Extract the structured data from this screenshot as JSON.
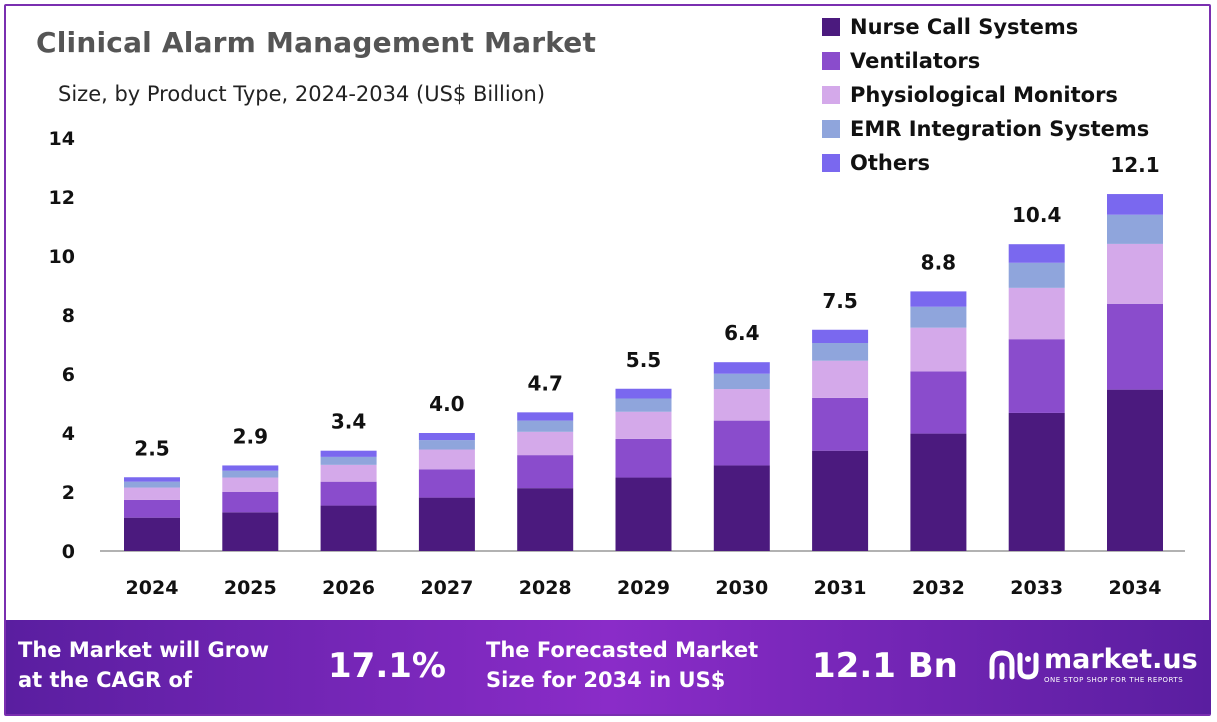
{
  "title": "Clinical Alarm Management Market",
  "subtitle": "Size, by Product Type, 2024-2034 (US$ Billion)",
  "colors": {
    "border": "#7a2fb0",
    "axis": "#999999",
    "banner_start": "#5a1ea0",
    "banner_mid": "#8a2cc8",
    "text_dark": "#111111"
  },
  "chart_data": {
    "type": "bar",
    "stacked": true,
    "title": "Clinical Alarm Management Market",
    "subtitle": "Size, by Product Type, 2024-2034 (US$ Billion)",
    "xlabel": "",
    "ylabel": "",
    "ylim": [
      0,
      14
    ],
    "yticks": [
      0,
      2,
      4,
      6,
      8,
      10,
      12,
      14
    ],
    "grid": false,
    "legend_position": "top-right",
    "categories": [
      "2024",
      "2025",
      "2026",
      "2027",
      "2028",
      "2029",
      "2030",
      "2031",
      "2032",
      "2033",
      "2034"
    ],
    "totals": [
      2.5,
      2.9,
      3.4,
      4.0,
      4.7,
      5.5,
      6.4,
      7.5,
      8.8,
      10.4,
      12.1
    ],
    "total_labels": [
      "2.5",
      "2.9",
      "3.4",
      "4.0",
      "4.7",
      "5.5",
      "6.4",
      "7.5",
      "8.8",
      "10.4",
      "12.1"
    ],
    "series": [
      {
        "name": "Nurse Call Systems",
        "color": "#4b1a7e",
        "values": [
          1.13,
          1.31,
          1.54,
          1.81,
          2.13,
          2.49,
          2.9,
          3.4,
          3.98,
          4.68,
          5.47
        ]
      },
      {
        "name": "Ventilators",
        "color": "#8a4ccc",
        "values": [
          0.6,
          0.69,
          0.81,
          0.96,
          1.12,
          1.31,
          1.52,
          1.79,
          2.11,
          2.5,
          2.91
        ]
      },
      {
        "name": "Physiological Monitors",
        "color": "#d4a9ea",
        "values": [
          0.42,
          0.49,
          0.57,
          0.67,
          0.79,
          0.92,
          1.07,
          1.26,
          1.48,
          1.74,
          2.03
        ]
      },
      {
        "name": "EMR Integration Systems",
        "color": "#8fa5dc",
        "values": [
          0.2,
          0.23,
          0.27,
          0.32,
          0.38,
          0.45,
          0.52,
          0.6,
          0.71,
          0.85,
          0.99
        ]
      },
      {
        "name": "Others",
        "color": "#7a68ef",
        "values": [
          0.15,
          0.18,
          0.21,
          0.24,
          0.28,
          0.33,
          0.39,
          0.45,
          0.52,
          0.63,
          0.7
        ]
      }
    ]
  },
  "banner": {
    "cagr_text": "The Market will Grow\nat the CAGR of",
    "cagr_value": "17.1%",
    "forecast_text": "The Forecasted Market\nSize for 2034 in US$",
    "forecast_value": "12.1 Bn"
  },
  "logo": {
    "icon": "market-us-logo-icon",
    "name": "market.us",
    "tagline": "ONE STOP SHOP FOR THE REPORTS"
  }
}
